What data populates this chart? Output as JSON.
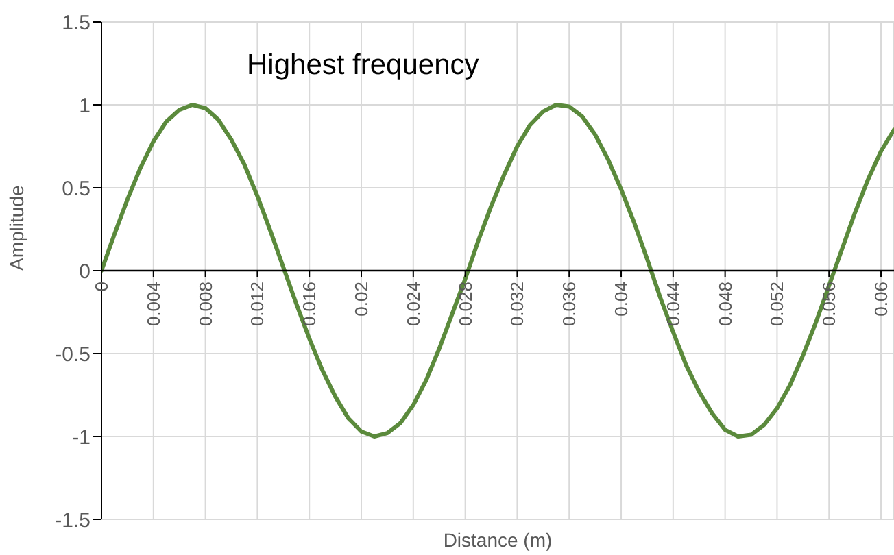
{
  "chart_data": {
    "type": "line",
    "title": "Highest frequency",
    "xlabel": "Distance (m)",
    "ylabel": "Amplitude",
    "x": [
      0,
      0.001,
      0.002,
      0.003,
      0.004,
      0.005,
      0.006,
      0.007,
      0.008,
      0.009,
      0.01,
      0.011,
      0.012,
      0.013,
      0.014,
      0.015,
      0.016,
      0.017,
      0.018,
      0.019,
      0.02,
      0.021,
      0.022,
      0.023,
      0.024,
      0.025,
      0.026,
      0.027,
      0.028,
      0.029,
      0.03,
      0.031,
      0.032,
      0.033,
      0.034,
      0.035,
      0.036,
      0.037,
      0.038,
      0.039,
      0.04,
      0.041,
      0.042,
      0.043,
      0.044,
      0.045,
      0.046,
      0.047,
      0.048,
      0.049,
      0.05,
      0.051,
      0.052,
      0.053,
      0.054,
      0.055,
      0.056,
      0.057,
      0.058,
      0.059,
      0.06,
      0.061
    ],
    "series": [
      {
        "color": "#5b8a3c",
        "values": [
          0,
          0.22,
          0.43,
          0.62,
          0.78,
          0.9,
          0.97,
          1,
          0.98,
          0.91,
          0.79,
          0.64,
          0.45,
          0.24,
          0.02,
          -0.2,
          -0.41,
          -0.6,
          -0.76,
          -0.89,
          -0.97,
          -1,
          -0.98,
          -0.92,
          -0.81,
          -0.66,
          -0.47,
          -0.26,
          -0.05,
          0.18,
          0.39,
          0.58,
          0.75,
          0.88,
          0.96,
          1,
          0.99,
          0.93,
          0.82,
          0.67,
          0.49,
          0.29,
          0.07,
          -0.16,
          -0.37,
          -0.57,
          -0.73,
          -0.86,
          -0.96,
          -1,
          -0.99,
          -0.93,
          -0.83,
          -0.69,
          -0.51,
          -0.31,
          -0.09,
          0.13,
          0.35,
          0.55,
          0.72,
          0.85
        ]
      }
    ],
    "xlim": [
      0,
      0.061
    ],
    "xticks": [
      0,
      0.004,
      0.008,
      0.012,
      0.016,
      0.02,
      0.024,
      0.028,
      0.032,
      0.036,
      0.04,
      0.044,
      0.048,
      0.052,
      0.056,
      0.06
    ],
    "ylim": [
      -1.5,
      1.5
    ],
    "yticks": [
      -1.5,
      -1,
      -0.5,
      0,
      0.5,
      1,
      1.5
    ],
    "grid": true,
    "legend": false,
    "marker": "none",
    "line_style": "solid"
  }
}
